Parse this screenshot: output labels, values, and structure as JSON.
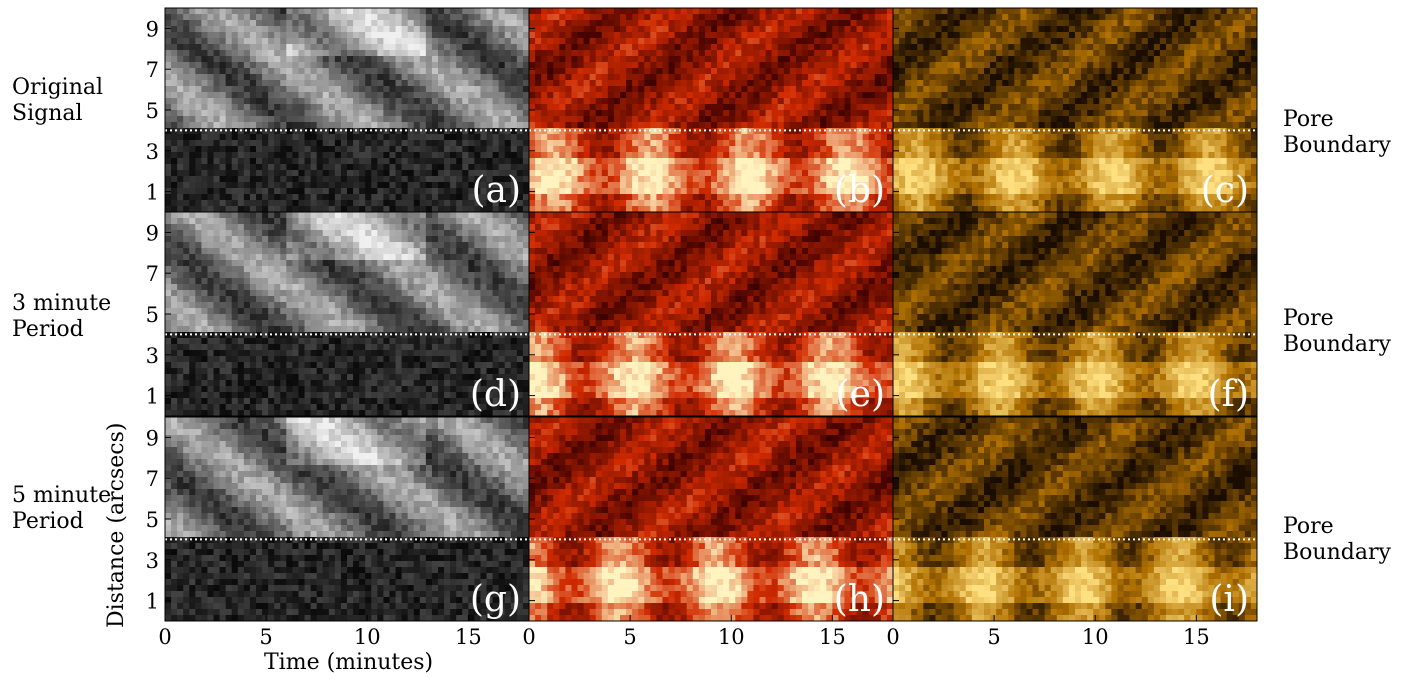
{
  "chart_data": {
    "type": "heatmap",
    "layout": "3x3 grid of time-distance diagrams",
    "xlabel": "Time (minutes)",
    "ylabel": "Distance (arcsecs)",
    "xlim": [
      0,
      18
    ],
    "ylim": [
      0,
      10
    ],
    "xticks": [
      "0",
      "5",
      "10",
      "15"
    ],
    "yticks": [
      "1",
      "3",
      "5",
      "7",
      "9"
    ],
    "pore_boundary_distance": 4,
    "row_labels": [
      {
        "line1": "Original",
        "line2": "Signal"
      },
      {
        "line1": "3 minute",
        "line2": "Period"
      },
      {
        "line1": "5 minute",
        "line2": "Period"
      }
    ],
    "side_labels": [
      {
        "line1": "Pore",
        "line2": "Boundary"
      },
      {
        "line1": "Pore",
        "line2": "Boundary"
      },
      {
        "line1": "Pore",
        "line2": "Boundary"
      }
    ],
    "column_colormaps": [
      "gray",
      "hot",
      "afmhot"
    ],
    "panels": [
      {
        "label": "(a)",
        "row": 0,
        "col": 0,
        "colormap": "gray"
      },
      {
        "label": "(b)",
        "row": 0,
        "col": 1,
        "colormap": "hot"
      },
      {
        "label": "(c)",
        "row": 0,
        "col": 2,
        "colormap": "afmhot"
      },
      {
        "label": "(d)",
        "row": 1,
        "col": 0,
        "colormap": "gray"
      },
      {
        "label": "(e)",
        "row": 1,
        "col": 1,
        "colormap": "hot"
      },
      {
        "label": "(f)",
        "row": 1,
        "col": 2,
        "colormap": "afmhot"
      },
      {
        "label": "(g)",
        "row": 2,
        "col": 0,
        "colormap": "gray"
      },
      {
        "label": "(h)",
        "row": 2,
        "col": 1,
        "colormap": "hot"
      },
      {
        "label": "(i)",
        "row": 2,
        "col": 2,
        "colormap": "afmhot"
      }
    ],
    "colors": {
      "gray_dark": "#0a0a0a",
      "gray_light": "#f0f0f0",
      "hot_dark": "#3a0000",
      "hot_mid": "#d02a00",
      "hot_light": "#fff4c0",
      "afmhot_dark": "#1a0d00",
      "afmhot_mid": "#b07000",
      "afmhot_light": "#ffe080",
      "boundary_line": "#ffffff",
      "panel_label": "#ffffff"
    }
  }
}
